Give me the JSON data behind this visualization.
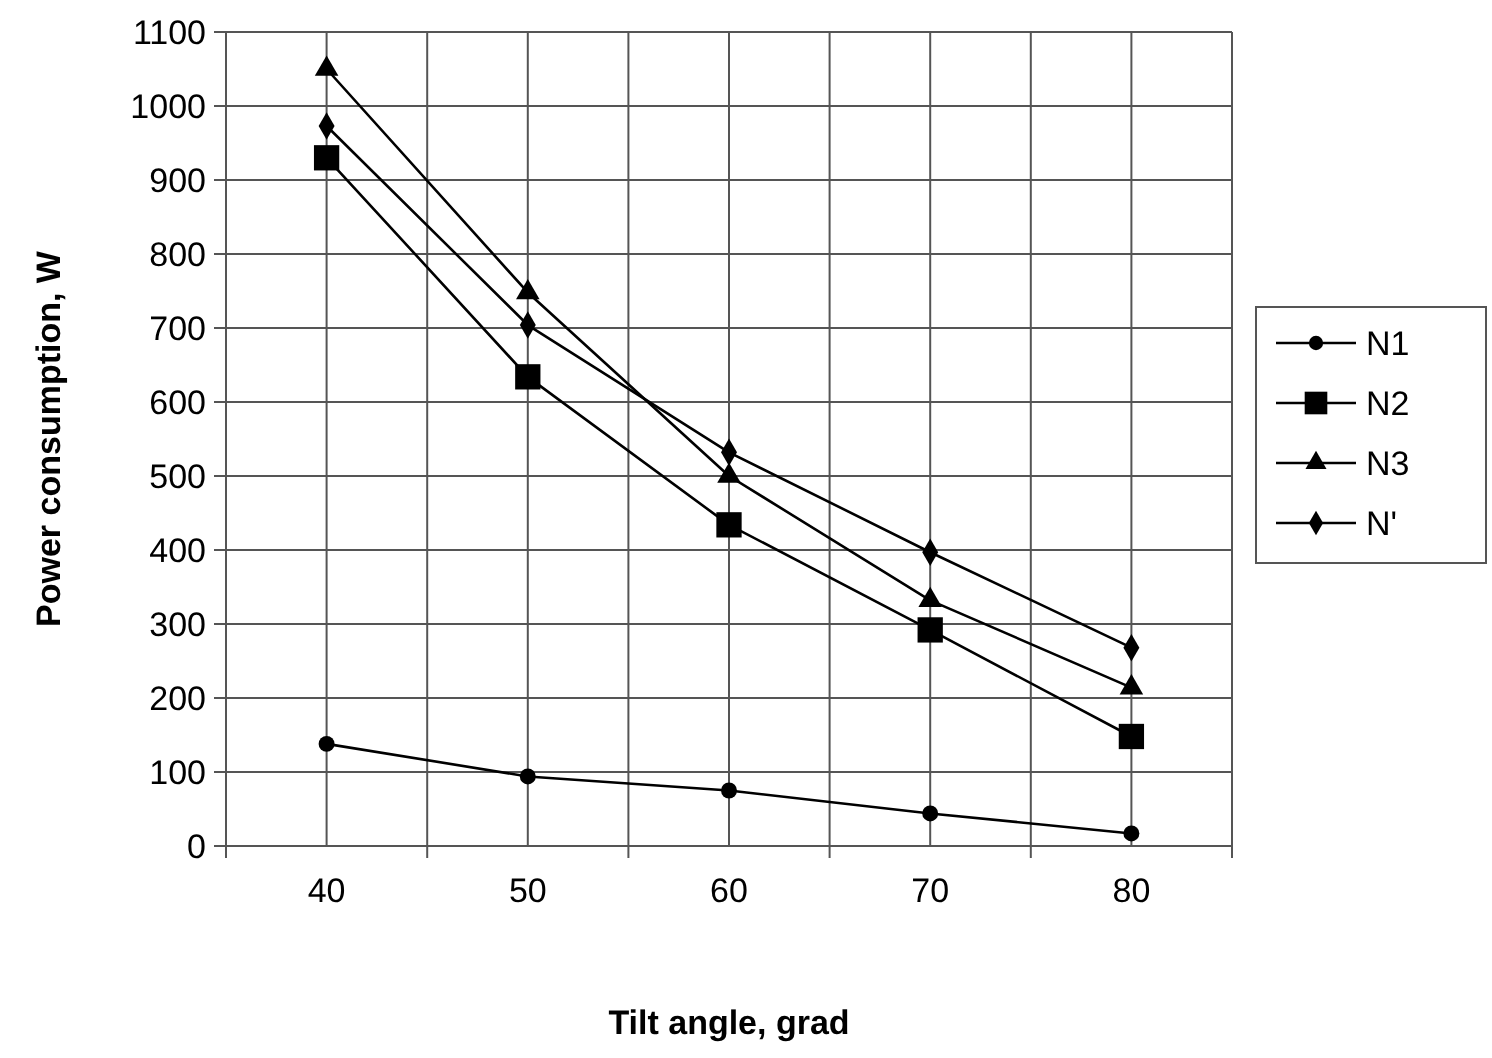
{
  "chart_data": {
    "type": "line",
    "xlabel": "Tilt angle, grad",
    "ylabel": "Power consumption, W",
    "categories": [
      "40",
      "50",
      "60",
      "70",
      "80"
    ],
    "ylim": [
      0,
      1100
    ],
    "yticks": [
      0,
      100,
      200,
      300,
      400,
      500,
      600,
      700,
      800,
      900,
      1000,
      1100
    ],
    "grid": true,
    "legend": "right",
    "series": [
      {
        "name": "N1",
        "color": "#000000",
        "marker": "circle",
        "values": [
          138,
          94,
          75,
          44,
          17
        ]
      },
      {
        "name": "N2",
        "color": "#000000",
        "marker": "square",
        "values": [
          930,
          634,
          434,
          292,
          148
        ]
      },
      {
        "name": "N3",
        "color": "#000000",
        "marker": "triangle",
        "values": [
          1050,
          748,
          500,
          332,
          214
        ]
      },
      {
        "name": "N'",
        "color": "#000000",
        "marker": "diamond",
        "values": [
          973,
          704,
          532,
          397,
          268
        ]
      }
    ]
  }
}
